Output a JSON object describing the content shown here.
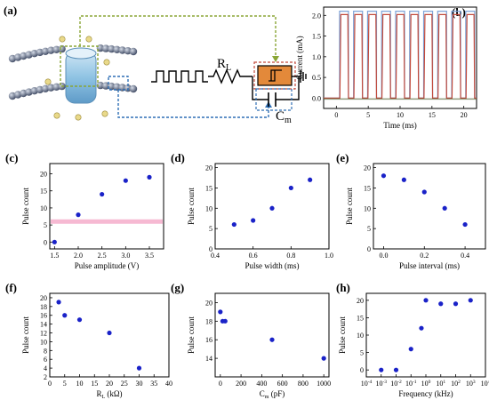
{
  "figure": {
    "panel_labels": [
      "(a)",
      "(b)",
      "(c)",
      "(d)",
      "(e)",
      "(f)",
      "(g)",
      "(h)"
    ]
  },
  "schematic": {
    "rl_label": "R",
    "rl_sub": "L",
    "cm_label": "C",
    "cm_sub": "m",
    "colors": {
      "green_dash": "#8aa636",
      "blue_dash": "#2f6fb5",
      "device": "#e3893a",
      "bead": "#4f5e78",
      "channel": "#8fc3e3",
      "wire": "#000000"
    }
  },
  "chart_data": [
    {
      "id": "b",
      "type": "line",
      "xlabel": "Time (ms)",
      "ylabel": "Current (mA)",
      "xlim": [
        -2,
        22
      ],
      "ylim": [
        -0.25,
        2.2
      ],
      "xticks": [
        0,
        5,
        10,
        15,
        20
      ],
      "yticks": [
        0.0,
        0.5,
        1.0,
        1.5,
        2.0
      ],
      "ytick_labels": [
        "0.0",
        "0.5",
        "1.0",
        "1.5",
        "2.0"
      ],
      "pulse_train": {
        "start": 0.5,
        "period": 2.2,
        "width": 1.4,
        "count": 10,
        "input_high": 2.1,
        "output_high": 2.02,
        "baseline": 0.0,
        "input_color": "#7fa4d8",
        "output_color": "#c24a3c"
      }
    },
    {
      "id": "c",
      "type": "scatter",
      "xlabel": "Pulse amplitude (V)",
      "ylabel": "Pulse count",
      "xlim": [
        1.4,
        3.8
      ],
      "ylim": [
        -2,
        23
      ],
      "xticks": [
        1.5,
        2.0,
        2.5,
        3.0,
        3.5
      ],
      "xtick_labels": [
        "1.5",
        "2.0",
        "2.5",
        "3.0",
        "3.5"
      ],
      "yticks": [
        0,
        5,
        10,
        15,
        20
      ],
      "x": [
        1.5,
        2.0,
        2.5,
        3.0,
        3.5
      ],
      "y": [
        0,
        8,
        14,
        18,
        19
      ],
      "band": {
        "y": 6,
        "color": "#f5a8c8"
      }
    },
    {
      "id": "d",
      "type": "scatter",
      "xlabel": "Pulse width (ms)",
      "ylabel": "Pulse count",
      "xlim": [
        0.4,
        1.0
      ],
      "ylim": [
        0,
        21
      ],
      "xticks": [
        0.4,
        0.6,
        0.8,
        1.0
      ],
      "xtick_labels": [
        "0.4",
        "0.6",
        "0.8",
        "1.0"
      ],
      "yticks": [
        0,
        5,
        10,
        15,
        20
      ],
      "x": [
        0.5,
        0.6,
        0.7,
        0.8,
        0.9
      ],
      "y": [
        6,
        7,
        10,
        15,
        17
      ]
    },
    {
      "id": "e",
      "type": "scatter",
      "xlabel": "Pulse interval (ms)",
      "ylabel": "Pulse count",
      "xlim": [
        -0.05,
        0.5
      ],
      "ylim": [
        0,
        21
      ],
      "xticks": [
        0.0,
        0.2,
        0.4
      ],
      "xtick_labels": [
        "0.0",
        "0.2",
        "0.4"
      ],
      "yticks": [
        0,
        5,
        10,
        15,
        20
      ],
      "x": [
        0.0,
        0.1,
        0.2,
        0.3,
        0.4
      ],
      "y": [
        18,
        17,
        14,
        10,
        6
      ]
    },
    {
      "id": "f",
      "type": "scatter",
      "xlabel": "R",
      "xlabel_sub": "L",
      "xlabel_suffix": " (kΩ)",
      "ylabel": "Pulse count",
      "xlim": [
        0,
        40
      ],
      "ylim": [
        2,
        21
      ],
      "xticks": [
        0,
        5,
        10,
        15,
        20,
        25,
        30,
        35,
        40
      ],
      "yticks": [
        2,
        4,
        6,
        8,
        10,
        12,
        14,
        16,
        18,
        20
      ],
      "x": [
        3,
        5,
        10,
        20,
        30
      ],
      "y": [
        19,
        16,
        15,
        12,
        4
      ]
    },
    {
      "id": "g",
      "type": "scatter",
      "xlabel": "C",
      "xlabel_sub": "m",
      "xlabel_suffix": " (pF)",
      "ylabel": "Pulse count",
      "xlim": [
        -50,
        1050
      ],
      "ylim": [
        12,
        21
      ],
      "xticks": [
        0,
        200,
        400,
        600,
        800,
        1000
      ],
      "yticks": [
        14,
        16,
        18,
        20
      ],
      "x": [
        0,
        22,
        47,
        500,
        1000
      ],
      "y": [
        19,
        18,
        18,
        16,
        14
      ]
    },
    {
      "id": "h",
      "type": "scatter",
      "log_x": true,
      "xlabel": "Frequency (kHz)",
      "ylabel": "Pulse count",
      "xlim": [
        -4,
        4
      ],
      "ylim": [
        -2,
        22
      ],
      "xticks": [
        -4,
        -3,
        -2,
        -1,
        0,
        1,
        2,
        3,
        4
      ],
      "yticks": [
        0,
        5,
        10,
        15,
        20
      ],
      "x": [
        0.001,
        0.01,
        0.1,
        0.5,
        1,
        10,
        100,
        1000
      ],
      "y": [
        0,
        0,
        6,
        12,
        20,
        19,
        19,
        20
      ]
    }
  ],
  "marker_color": "#1a22c8"
}
